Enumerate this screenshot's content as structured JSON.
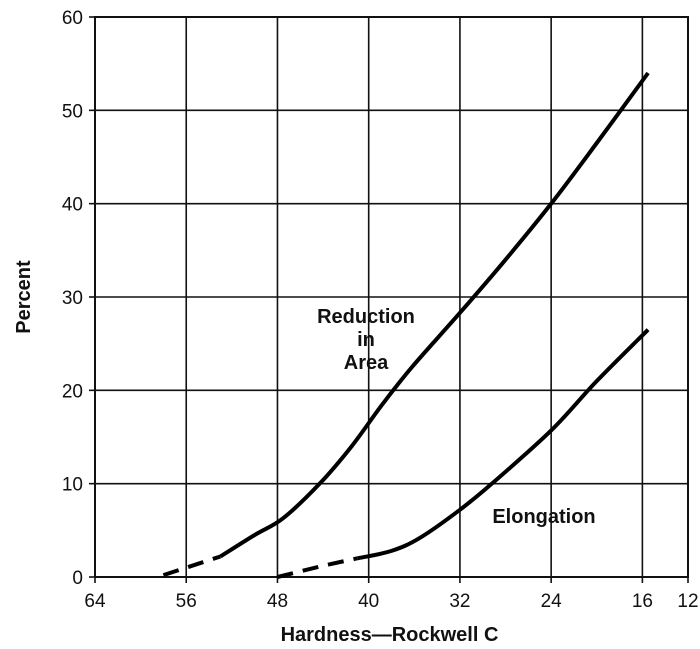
{
  "chart_data": {
    "type": "line",
    "title": "",
    "xlabel": "Hardness—Rockwell C",
    "ylabel": "Percent",
    "xlim": [
      64,
      12
    ],
    "ylim": [
      0,
      60
    ],
    "x_ticks": [
      "64",
      "56",
      "48",
      "40",
      "32",
      "24",
      "16",
      "12"
    ],
    "x_tick_values": [
      64,
      56,
      48,
      40,
      32,
      24,
      16,
      12
    ],
    "y_ticks": [
      "0",
      "10",
      "20",
      "30",
      "40",
      "50",
      "60"
    ],
    "y_tick_values": [
      0,
      10,
      20,
      30,
      40,
      50,
      60
    ],
    "grid": true,
    "series": [
      {
        "name": "Reduction in Area",
        "label_lines": [
          "Reduction",
          "in",
          "Area"
        ],
        "dashed_points": [
          [
            58,
            0.2
          ],
          [
            53,
            2.2
          ]
        ],
        "points": [
          [
            53,
            2.2
          ],
          [
            50,
            4.5
          ],
          [
            47.5,
            6.3
          ],
          [
            44.3,
            10
          ],
          [
            41.5,
            14
          ],
          [
            38.8,
            18.5
          ],
          [
            36.2,
            22.5
          ],
          [
            32,
            28.3
          ],
          [
            28,
            34
          ],
          [
            24,
            40
          ],
          [
            20,
            46.5
          ],
          [
            15.5,
            54
          ]
        ]
      },
      {
        "name": "Elongation",
        "label_lines": [
          "Elongation"
        ],
        "dashed_points": [
          [
            48,
            0
          ],
          [
            44,
            1.2
          ],
          [
            41,
            2
          ]
        ],
        "points": [
          [
            41,
            2
          ],
          [
            38,
            2.8
          ],
          [
            35.5,
            4.2
          ],
          [
            32,
            7.2
          ],
          [
            29.2,
            10
          ],
          [
            24,
            15.7
          ],
          [
            20,
            21
          ],
          [
            15.5,
            26.5
          ]
        ]
      }
    ]
  }
}
